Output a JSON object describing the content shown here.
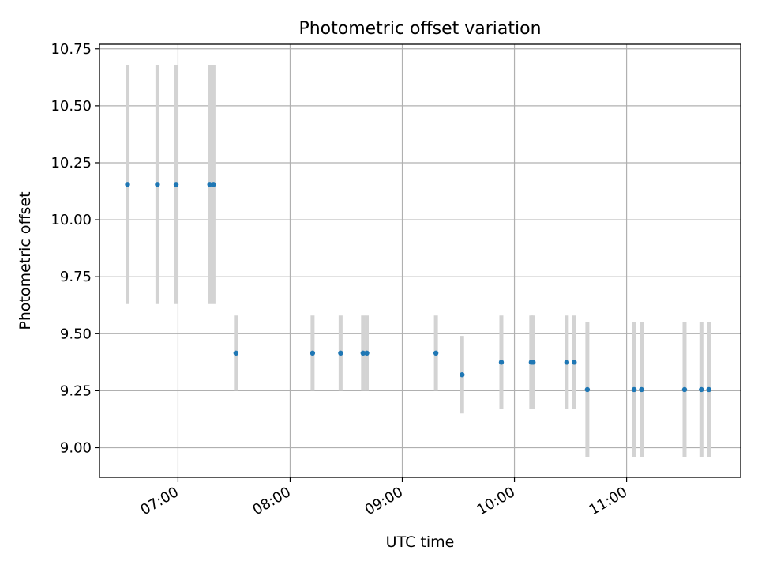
{
  "chart_data": {
    "type": "scatter",
    "title": "Photometric offset variation",
    "xlabel": "UTC time",
    "ylabel": "Photometric offset",
    "x_axis_kind": "time (HH:MM)",
    "xlim": [
      "06:18",
      "12:01"
    ],
    "ylim": [
      8.87,
      10.77
    ],
    "grid": true,
    "xticks": [
      "07:00",
      "08:00",
      "09:00",
      "10:00",
      "11:00"
    ],
    "yticks": [
      "9.00",
      "9.25",
      "9.50",
      "9.75",
      "10.00",
      "10.25",
      "10.50",
      "10.75"
    ],
    "colors": {
      "points": "#1f77b4",
      "errorbars": "#d3d3d3",
      "grid": "#b0b0b0"
    },
    "series": [
      {
        "points": [
          {
            "x": "06:33",
            "y": 10.155,
            "ylow": 9.63,
            "yhigh": 10.68
          },
          {
            "x": "06:49",
            "y": 10.155,
            "ylow": 9.63,
            "yhigh": 10.68
          },
          {
            "x": "06:59",
            "y": 10.155,
            "ylow": 9.63,
            "yhigh": 10.68
          },
          {
            "x": "07:17",
            "y": 10.155,
            "ylow": 9.63,
            "yhigh": 10.68
          },
          {
            "x": "07:19",
            "y": 10.155,
            "ylow": 9.63,
            "yhigh": 10.68
          },
          {
            "x": "07:31",
            "y": 9.415,
            "ylow": 9.25,
            "yhigh": 9.58
          },
          {
            "x": "08:12",
            "y": 9.415,
            "ylow": 9.25,
            "yhigh": 9.58
          },
          {
            "x": "08:27",
            "y": 9.415,
            "ylow": 9.25,
            "yhigh": 9.58
          },
          {
            "x": "08:39",
            "y": 9.415,
            "ylow": 9.25,
            "yhigh": 9.58
          },
          {
            "x": "08:41",
            "y": 9.415,
            "ylow": 9.25,
            "yhigh": 9.58
          },
          {
            "x": "09:18",
            "y": 9.415,
            "ylow": 9.25,
            "yhigh": 9.58
          },
          {
            "x": "09:32",
            "y": 9.32,
            "ylow": 9.15,
            "yhigh": 9.49
          },
          {
            "x": "09:53",
            "y": 9.375,
            "ylow": 9.17,
            "yhigh": 9.58
          },
          {
            "x": "10:09",
            "y": 9.375,
            "ylow": 9.17,
            "yhigh": 9.58
          },
          {
            "x": "10:10",
            "y": 9.375,
            "ylow": 9.17,
            "yhigh": 9.58
          },
          {
            "x": "10:28",
            "y": 9.375,
            "ylow": 9.17,
            "yhigh": 9.58
          },
          {
            "x": "10:32",
            "y": 9.375,
            "ylow": 9.17,
            "yhigh": 9.58
          },
          {
            "x": "10:39",
            "y": 9.255,
            "ylow": 8.96,
            "yhigh": 9.55
          },
          {
            "x": "11:04",
            "y": 9.255,
            "ylow": 8.96,
            "yhigh": 9.55
          },
          {
            "x": "11:08",
            "y": 9.255,
            "ylow": 8.96,
            "yhigh": 9.55
          },
          {
            "x": "11:31",
            "y": 9.255,
            "ylow": 8.96,
            "yhigh": 9.55
          },
          {
            "x": "11:40",
            "y": 9.255,
            "ylow": 8.96,
            "yhigh": 9.55
          },
          {
            "x": "11:44",
            "y": 9.255,
            "ylow": 8.96,
            "yhigh": 9.55
          }
        ]
      }
    ]
  }
}
